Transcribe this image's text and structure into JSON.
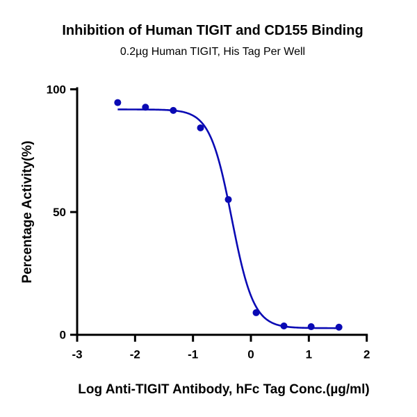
{
  "chart_data": {
    "type": "scatter",
    "title": "Inhibition of Human TIGIT and CD155 Binding",
    "subtitle": "0.2µg Human TIGIT, His Tag Per Well",
    "xlabel": "Log Anti-TIGIT Antibody, hFc Tag Conc.(µg/ml)",
    "ylabel": "Percentage Activity(%)",
    "xlim": [
      -3,
      2
    ],
    "ylim": [
      0,
      100
    ],
    "xticks": [
      "-3",
      "-2",
      "-1",
      "0",
      "1",
      "2"
    ],
    "yticks": [
      "0",
      "50",
      "100"
    ],
    "grid": false,
    "color": "#0a0ab4",
    "series": [
      {
        "x": [
          -2.3,
          -1.82,
          -1.34,
          -0.87,
          -0.39,
          0.09,
          0.57,
          1.04,
          1.52
        ],
        "y": [
          94.6,
          92.7,
          91.4,
          84.3,
          55.1,
          9.0,
          3.6,
          3.3,
          3.1
        ]
      }
    ],
    "fit": {
      "model": "four-parameter logistic",
      "top": 91.8,
      "bottom": 2.7,
      "logIC50": -0.33,
      "hill_slope": -2.3
    }
  }
}
